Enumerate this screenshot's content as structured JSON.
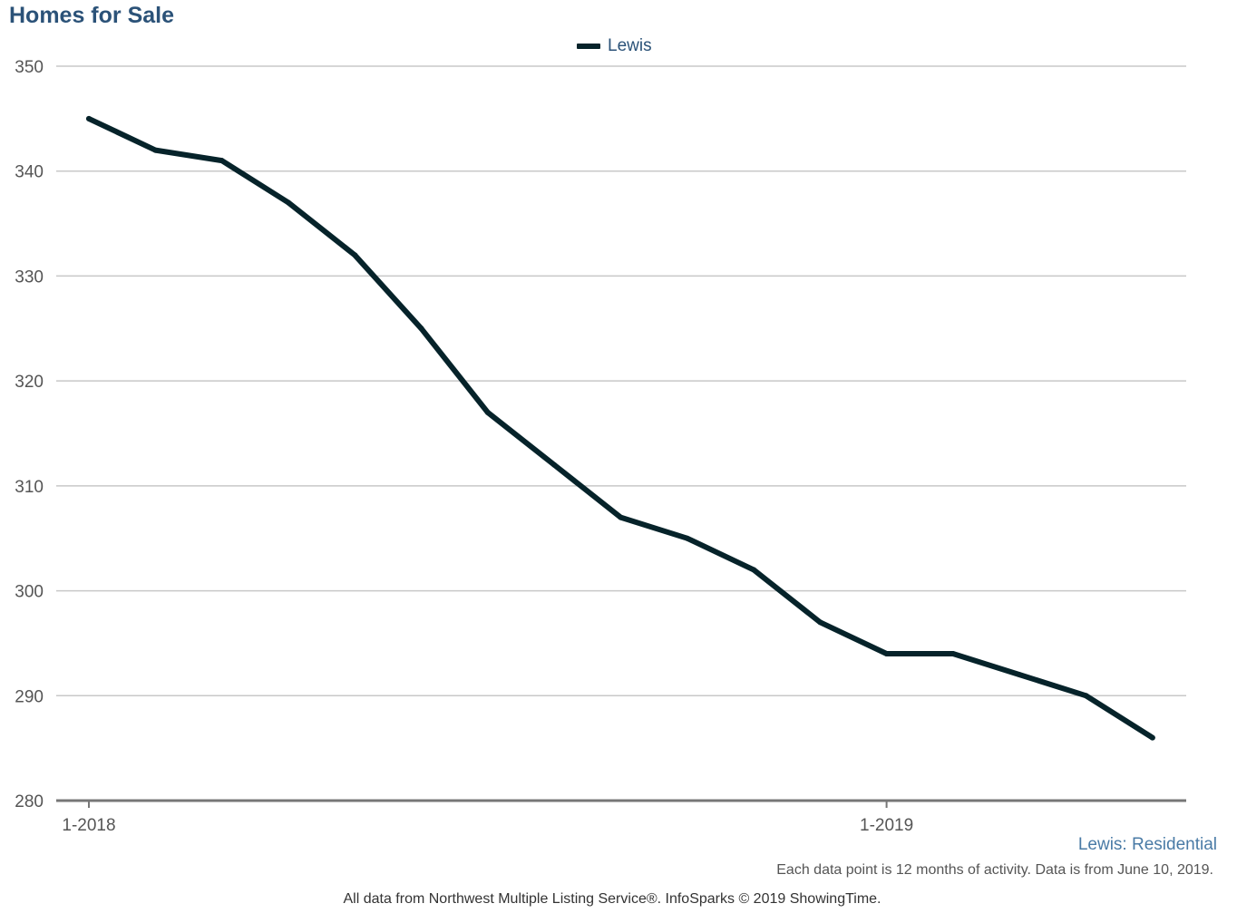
{
  "colors": {
    "title": "#2b5278",
    "series": "#06232a",
    "grid": "#c8c8c8",
    "axis": "#777777",
    "subtitle": "#4a7ba6"
  },
  "footer": {
    "subtitle": "Lewis: Residential",
    "note": "Each data point is 12 months of activity. Data is from June 10, 2019.",
    "credit": "All data from Northwest Multiple Listing Service®. InfoSparks © 2019 ShowingTime."
  },
  "chart_data": {
    "type": "line",
    "title": "Homes for Sale",
    "xlabel": "",
    "ylabel": "",
    "x": [
      "2018-01",
      "2018-02",
      "2018-03",
      "2018-04",
      "2018-05",
      "2018-06",
      "2018-07",
      "2018-08",
      "2018-09",
      "2018-10",
      "2018-11",
      "2018-12",
      "2019-01",
      "2019-02",
      "2019-03",
      "2019-04",
      "2019-05"
    ],
    "x_tick_labels": [
      {
        "at": "2018-01",
        "label": "1-2018"
      },
      {
        "at": "2019-01",
        "label": "1-2019"
      }
    ],
    "series": [
      {
        "name": "Lewis",
        "color": "#06232a",
        "values": [
          345,
          342,
          341,
          337,
          332,
          325,
          317,
          312,
          307,
          305,
          302,
          297,
          294,
          294,
          292,
          290,
          286
        ]
      }
    ],
    "ylim": [
      280,
      350
    ],
    "y_ticks": [
      280,
      290,
      300,
      310,
      320,
      330,
      340,
      350
    ],
    "grid": true,
    "legend_position": "top-center"
  }
}
